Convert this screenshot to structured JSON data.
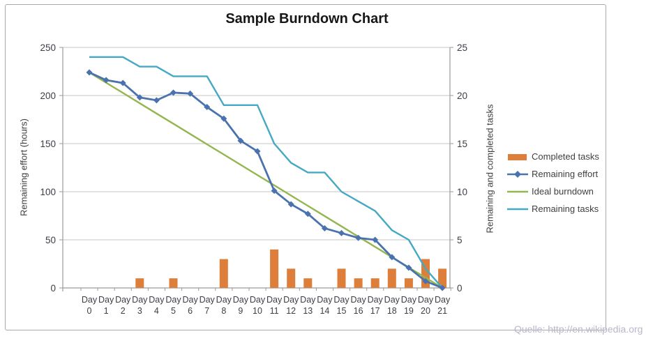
{
  "chart_data": {
    "type": "combo",
    "title": "Sample Burndown Chart",
    "source_note": "Quelle: http://en.wikipedia.org",
    "categories": [
      "Day 0",
      "Day 1",
      "Day 2",
      "Day 3",
      "Day 4",
      "Day 5",
      "Day 6",
      "Day 7",
      "Day 8",
      "Day 9",
      "Day 10",
      "Day 11",
      "Day 12",
      "Day 13",
      "Day 14",
      "Day 15",
      "Day 16",
      "Day 17",
      "Day 18",
      "Day 19",
      "Day 20",
      "Day 21"
    ],
    "y_left": {
      "label": "Remaining effort (hours)",
      "ticks": [
        0,
        50,
        100,
        150,
        200,
        250
      ],
      "range": [
        0,
        250
      ]
    },
    "y_right": {
      "label": "Remaining and  completed tasks",
      "ticks": [
        0,
        5,
        10,
        15,
        20,
        25
      ],
      "range": [
        0,
        25
      ]
    },
    "grid": "horizontal",
    "grid_color": "#c6c6c6",
    "axis_color": "#9a9a9a",
    "tick_text_color": "#3d3d46",
    "legend_position": "right",
    "series": [
      {
        "name": "Completed tasks",
        "type": "bar",
        "axis": "right",
        "color": "#dd7e3b",
        "values": [
          0,
          0,
          0,
          1,
          0,
          1,
          0,
          0,
          3,
          0,
          0,
          4,
          2,
          1,
          0,
          2,
          1,
          1,
          2,
          1,
          3,
          2
        ]
      },
      {
        "name": "Remaining effort",
        "type": "line",
        "marker": "diamond",
        "axis": "left",
        "color": "#4a72ae",
        "values": [
          224,
          216,
          213,
          198,
          195,
          203,
          202,
          188,
          176,
          153,
          142,
          101,
          87,
          77,
          62,
          57,
          52,
          50,
          32,
          21,
          7,
          0
        ]
      },
      {
        "name": "Ideal burndown",
        "type": "line",
        "axis": "left",
        "color": "#94b64e",
        "values": [
          224,
          213.3,
          202.7,
          192,
          181.3,
          170.7,
          160,
          149.3,
          138.7,
          128,
          117.3,
          106.7,
          96,
          85.3,
          74.7,
          64,
          53.3,
          42.7,
          32,
          21.3,
          10.7,
          0
        ]
      },
      {
        "name": "Remaining tasks",
        "type": "line",
        "axis": "right",
        "color": "#45a9c4",
        "values": [
          24,
          24,
          24,
          23,
          23,
          22,
          22,
          22,
          19,
          19,
          19,
          15,
          13,
          12,
          12,
          10,
          9,
          8,
          6,
          5,
          2,
          0
        ]
      }
    ]
  }
}
